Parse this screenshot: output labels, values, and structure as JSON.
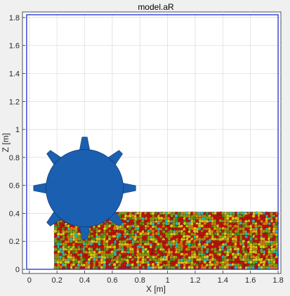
{
  "chart_data": {
    "type": "scatter",
    "title": "model.aR",
    "xlabel": "X [m]",
    "ylabel": "Z [m]",
    "xlim": [
      -0.05,
      1.82
    ],
    "ylim": [
      -0.03,
      1.84
    ],
    "grid": true,
    "xticks": [
      "0",
      "0.2",
      "0.4",
      "0.6",
      "0.8",
      "1",
      "1.2",
      "1.4",
      "1.6",
      "1.8"
    ],
    "yticks": [
      "0",
      "0.2",
      "0.4",
      "0.6",
      "0.8",
      "1",
      "1.2",
      "1.4",
      "1.6",
      "1.8"
    ],
    "xtick_values": [
      0,
      0.2,
      0.4,
      0.6,
      0.8,
      1.0,
      1.2,
      1.4,
      1.6,
      1.8
    ],
    "ytick_values": [
      0,
      0.2,
      0.4,
      0.6,
      0.8,
      1.0,
      1.2,
      1.4,
      1.6,
      1.8
    ],
    "domain_box": {
      "x": [
        -0.02,
        1.8
      ],
      "z": [
        0.0,
        1.82
      ],
      "color": "#1f2fd6"
    },
    "wheel": {
      "center": [
        0.4,
        0.58
      ],
      "radius": 0.28,
      "teeth": 8,
      "tooth_length": 0.09,
      "color": "#1b5fb0"
    },
    "particle_bed": {
      "x": [
        0.18,
        1.8
      ],
      "z": [
        0.0,
        0.41
      ],
      "particle_radius": 0.012,
      "colors": [
        "#c0150f",
        "#8a9a10",
        "#d8c818",
        "#e07a10",
        "#2fb8b0",
        "#4a8a20"
      ]
    }
  }
}
